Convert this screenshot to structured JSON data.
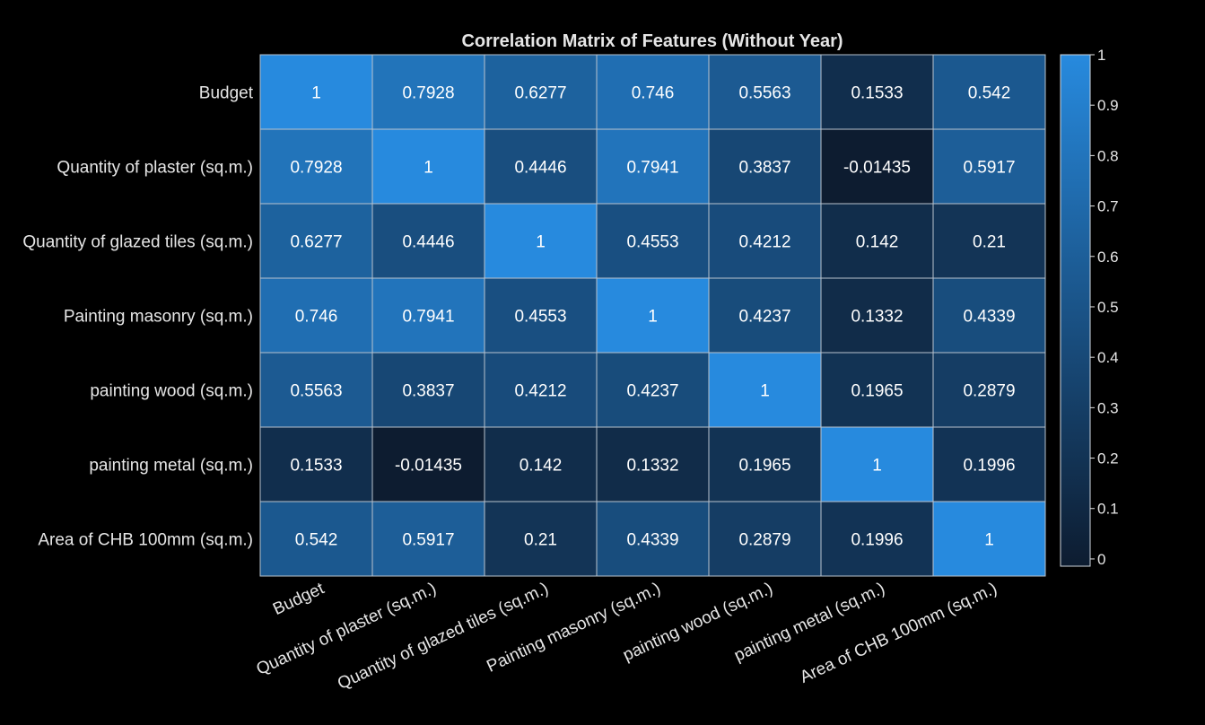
{
  "chart_data": {
    "type": "heatmap",
    "title": "Correlation Matrix of Features (Without Year)",
    "labels": [
      "Budget",
      "Quantity of plaster (sq.m.)",
      "Quantity of glazed tiles (sq.m.)",
      "Painting masonry (sq.m.)",
      "painting wood (sq.m.)",
      "painting metal (sq.m.)",
      "Area of CHB 100mm (sq.m.)"
    ],
    "matrix": [
      [
        "1",
        "0.7928",
        "0.6277",
        "0.746",
        "0.5563",
        "0.1533",
        "0.542"
      ],
      [
        "0.7928",
        "1",
        "0.4446",
        "0.7941",
        "0.3837",
        "-0.01435",
        "0.5917"
      ],
      [
        "0.6277",
        "0.4446",
        "1",
        "0.4553",
        "0.4212",
        "0.142",
        "0.21"
      ],
      [
        "0.746",
        "0.7941",
        "0.4553",
        "1",
        "0.4237",
        "0.1332",
        "0.4339"
      ],
      [
        "0.5563",
        "0.3837",
        "0.4212",
        "0.4237",
        "1",
        "0.1965",
        "0.2879"
      ],
      [
        "0.1533",
        "-0.01435",
        "0.142",
        "0.1332",
        "0.1965",
        "1",
        "0.1996"
      ],
      [
        "0.542",
        "0.5917",
        "0.21",
        "0.4339",
        "0.2879",
        "0.1996",
        "1"
      ]
    ],
    "colorbar": {
      "range": [
        -0.01435,
        1
      ],
      "ticks": [
        "0",
        "0.1",
        "0.2",
        "0.3",
        "0.4",
        "0.5",
        "0.6",
        "0.7",
        "0.8",
        "0.9",
        "1"
      ],
      "color_low": "#0d1c30",
      "color_high": "#278ade"
    },
    "background": "#000000",
    "gridline_color": "#b9c3ce",
    "text_color": "#ffffff",
    "label_color": "#e6e6e6"
  }
}
